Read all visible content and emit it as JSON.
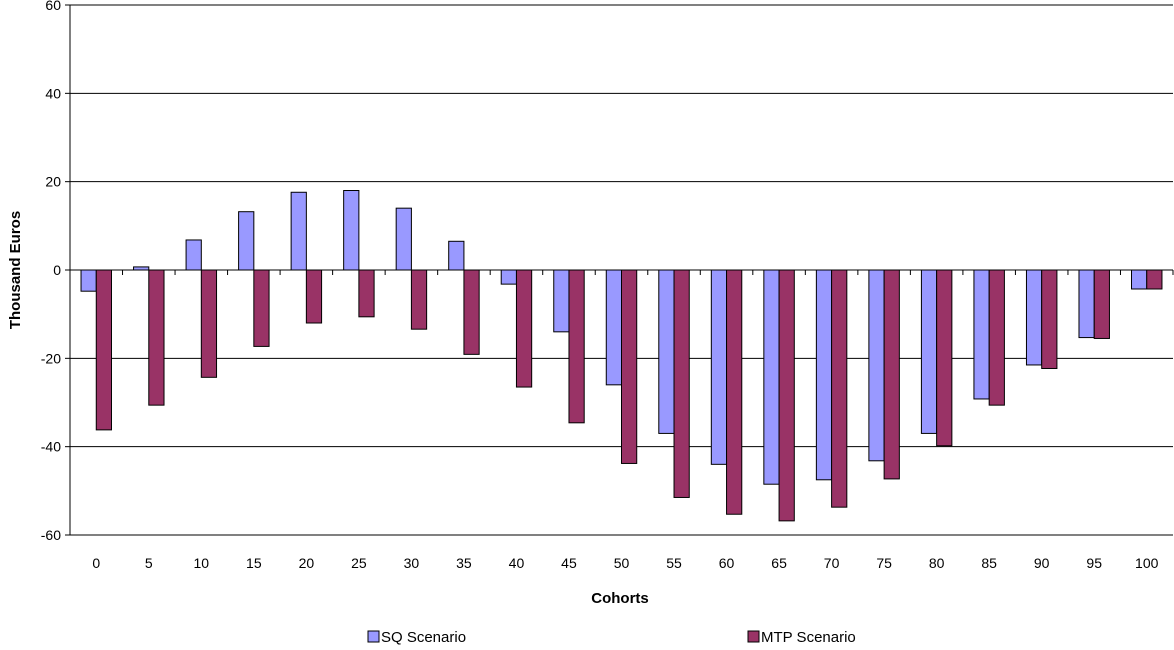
{
  "chart_data": {
    "type": "bar",
    "xlabel": "Cohorts",
    "ylabel": "Thousand  Euros",
    "ylim": [
      -60,
      60
    ],
    "yticks": [
      60,
      40,
      20,
      0,
      -20,
      -40,
      -60
    ],
    "categories": [
      "0",
      "5",
      "10",
      "15",
      "20",
      "25",
      "30",
      "35",
      "40",
      "45",
      "50",
      "55",
      "60",
      "65",
      "70",
      "75",
      "80",
      "85",
      "90",
      "95",
      "100"
    ],
    "series": [
      {
        "name": "SQ Scenario",
        "color": "#9999ff",
        "values": [
          -4.8,
          0.7,
          6.8,
          13.2,
          17.6,
          18.0,
          14.0,
          6.5,
          -3.2,
          -14.0,
          -26.0,
          -37.0,
          -44.0,
          -48.5,
          -47.5,
          -43.2,
          -37.0,
          -29.2,
          -21.5,
          -15.3,
          -4.3
        ]
      },
      {
        "name": "MTP Scenario",
        "color": "#993366",
        "values": [
          -36.2,
          -30.6,
          -24.3,
          -17.3,
          -12.0,
          -10.6,
          -13.4,
          -19.1,
          -26.5,
          -34.6,
          -43.8,
          -51.5,
          -55.3,
          -56.8,
          -53.7,
          -47.3,
          -39.8,
          -30.6,
          -22.3,
          -15.5,
          -4.3
        ]
      }
    ],
    "grid": true,
    "legend_position": "bottom"
  }
}
